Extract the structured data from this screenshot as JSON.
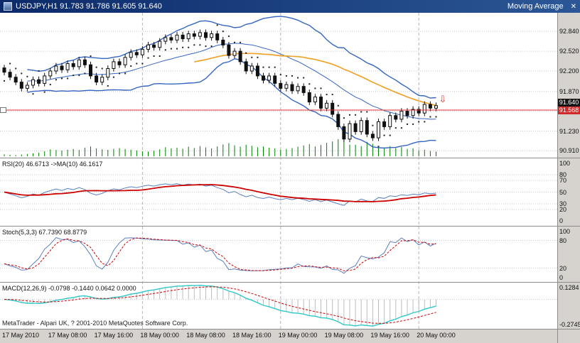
{
  "window": {
    "title": "USDJPY,H1  91.783 91.786 91.605 91.640",
    "indicator_panel_title": "Moving Average",
    "close_glyph": "✕"
  },
  "footer": {
    "copyright": "MetaTrader - Alpari UK, ? 2001-2010 MetaQuotes Software Corp."
  },
  "colors": {
    "pane_bg": "#ffffff",
    "frame_bg": "#d6d3ce",
    "grid": "#c9c9c9",
    "day_grid": "#b5b5b5",
    "separator": "#8c8c8c",
    "candle_up_fill": "#ffffff",
    "candle_down_fill": "#111111",
    "candle_stroke": "#111111",
    "band": "#3565c0",
    "ma": "#eea22a",
    "volume": "#008000",
    "rsi_line": "#5b7fbd",
    "rsi_signal": "#cc0000",
    "stoch_k": "#5b7fbd",
    "stoch_d": "#cc0000",
    "macd_line": "#2fc8c8",
    "macd_signal": "#cc0000",
    "macd_hist": "#bdbdbd",
    "price_line": "#e03030"
  },
  "chart_data": {
    "type": "candlestick",
    "symbol": "USDJPY",
    "timeframe": "H1",
    "title_ohlc": {
      "open": "91.783",
      "high": "91.786",
      "low": "91.605",
      "close": "91.640"
    },
    "first_open": 92.25,
    "wick": 0.05,
    "closes": [
      92.18,
      92.1,
      92.02,
      91.92,
      91.97,
      92.06,
      92.0,
      92.12,
      92.2,
      92.28,
      92.22,
      92.32,
      92.27,
      92.38,
      92.3,
      92.12,
      92.02,
      92.1,
      92.24,
      92.35,
      92.3,
      92.42,
      92.5,
      92.46,
      92.55,
      92.62,
      92.58,
      92.68,
      92.74,
      92.7,
      92.78,
      92.72,
      92.8,
      92.76,
      92.82,
      92.74,
      92.8,
      92.7,
      92.62,
      92.45,
      92.52,
      92.35,
      92.2,
      92.28,
      92.12,
      92.05,
      92.12,
      92.0,
      91.92,
      91.98,
      91.88,
      91.95,
      91.85,
      91.7,
      91.78,
      91.6,
      91.68,
      91.5,
      91.3,
      91.1,
      91.35,
      91.22,
      91.4,
      91.18,
      91.12,
      91.38,
      91.3,
      91.48,
      91.42,
      91.55,
      91.48,
      91.58,
      91.52,
      91.66,
      91.6,
      91.64
    ],
    "volumes": [
      12,
      9,
      7,
      11,
      14,
      18,
      22,
      30,
      42,
      38,
      35,
      40,
      44,
      38,
      52,
      60,
      48,
      42,
      39,
      45,
      50,
      44,
      40,
      36,
      30,
      28,
      34,
      42,
      55,
      48,
      52,
      46,
      58,
      50,
      62,
      54,
      48,
      60,
      72,
      80,
      66,
      58,
      70,
      64,
      55,
      60,
      52,
      48,
      40,
      44,
      50,
      58,
      66,
      74,
      60,
      68,
      82,
      90,
      104,
      96,
      70,
      70,
      62,
      88,
      76,
      58,
      54,
      62,
      50,
      56,
      44,
      48,
      36,
      40,
      32,
      28
    ],
    "y_axis": {
      "min": 90.8,
      "max": 93.14,
      "grid_values": [
        92.84,
        92.52,
        92.2,
        91.87,
        91.55,
        91.23,
        90.91
      ],
      "labels": [
        "92.840",
        "92.520",
        "92.200",
        "91.870",
        "91.230",
        "90.910"
      ]
    },
    "bid": {
      "value": 91.64,
      "label": "91.640"
    },
    "order_line": {
      "value": 91.568,
      "label": "91.568"
    },
    "sell_arrow": {
      "bar_index": 75,
      "price": 91.64,
      "glyph": "⇩"
    },
    "overlays": {
      "bollinger": {
        "period": 20,
        "deviation": 2
      },
      "moving_average": {
        "period": 34
      }
    },
    "panes": {
      "rsi": {
        "label": "RSI(20) 46.6713 ->MA(10) 46.1617",
        "period": 20,
        "ma_period": 10,
        "last_values": [
          46.6713,
          46.1617
        ],
        "axis_labels": [
          100,
          80,
          70,
          50,
          30,
          20,
          0
        ],
        "levels": [
          80,
          70,
          50,
          30,
          20
        ]
      },
      "stoch": {
        "label": "Stoch(5,3,3) 67.7390 68.8779",
        "k": 5,
        "slowing": 3,
        "d": 3,
        "last_values": [
          67.739,
          68.8779
        ],
        "axis_labels": [
          100,
          80,
          20,
          0
        ],
        "levels": [
          80,
          20
        ]
      },
      "macd": {
        "label": "MACD(12,26,9) -0.0798 -0.1440 0.0642 0.0000",
        "fast": 12,
        "slow": 26,
        "signal": 9,
        "last_values": [
          -0.0798,
          -0.144,
          0.0642,
          0.0
        ],
        "axis_labels": [
          "0.1284",
          "-0.2745"
        ]
      }
    },
    "time_labels": [
      "17 May 2010",
      "17 May 08:00",
      "17 May 16:00",
      "18 May 00:00",
      "18 May 08:00",
      "18 May 16:00",
      "19 May 00:00",
      "19 May 08:00",
      "19 May 16:00",
      "20 May 00:00"
    ],
    "bars_per_label": 8
  }
}
